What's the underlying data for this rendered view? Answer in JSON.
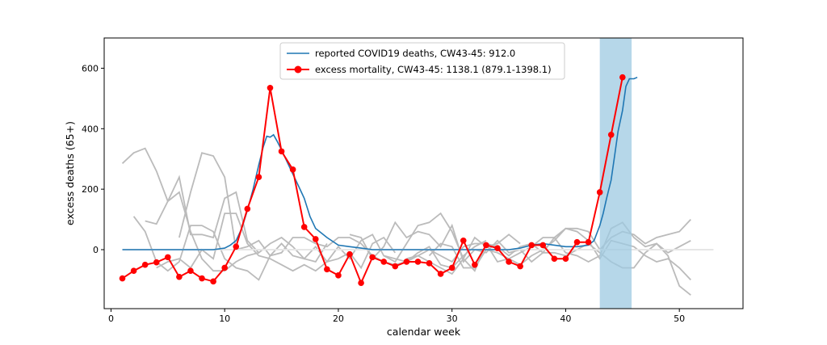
{
  "chart_data": {
    "type": "line",
    "xlabel": "calendar week",
    "ylabel": "excess deaths (65+)",
    "xlim": [
      -0.6,
      55.6
    ],
    "ylim": [
      -195,
      700
    ],
    "x_ticks": [
      0,
      10,
      20,
      30,
      40,
      50
    ],
    "y_ticks": [
      0,
      200,
      400,
      600
    ],
    "legend_position": "top-center",
    "colors": {
      "reported": "#1f77b4",
      "excess": "#ff0000",
      "background": "#bbbbbb",
      "highlight": "#9ecae1",
      "zero_line": "#e6e6e6"
    },
    "highlight_span": {
      "x_start": 43,
      "x_end": 45.8,
      "y_top": 700
    },
    "legend": [
      {
        "label": "reported COVID19 deaths, CW43-45: 912.0",
        "series": "reported"
      },
      {
        "label": "excess mortality, CW43-45: 1138.1 (879.1-1398.1)",
        "series": "excess"
      }
    ],
    "background_series": [
      {
        "x": [
          1,
          2,
          3,
          4,
          5,
          6,
          7,
          8,
          9,
          10,
          11,
          12,
          13
        ],
        "y": [
          285,
          320,
          335,
          260,
          160,
          190,
          60,
          -30,
          -70,
          -70,
          -40,
          -20,
          -10
        ]
      },
      {
        "x": [
          2,
          3,
          4,
          5,
          6,
          7,
          8,
          9,
          10,
          11,
          12,
          13,
          14,
          15,
          16,
          17,
          18,
          19
        ],
        "y": [
          110,
          60,
          -40,
          -70,
          -40,
          80,
          80,
          60,
          -30,
          -60,
          -70,
          -100,
          -20,
          20,
          -20,
          -30,
          -40,
          20
        ]
      },
      {
        "x": [
          3,
          4,
          5,
          6,
          7,
          8,
          9,
          10,
          11,
          12,
          13,
          14,
          15,
          16,
          17,
          18,
          19,
          20,
          21,
          22,
          23,
          24,
          25
        ],
        "y": [
          95,
          85,
          160,
          240,
          50,
          50,
          40,
          170,
          190,
          30,
          -10,
          20,
          40,
          10,
          -30,
          10,
          -40,
          -30,
          -10,
          -60,
          20,
          40,
          -10
        ]
      },
      {
        "x": [
          4,
          5,
          6,
          7,
          8,
          9,
          10,
          11,
          12,
          13,
          14,
          15,
          16,
          17,
          18,
          19,
          20,
          21,
          22,
          23,
          24,
          25,
          26,
          27,
          28,
          29,
          30,
          31,
          32,
          33
        ],
        "y": [
          -60,
          -40,
          -30,
          -60,
          0,
          -30,
          120,
          120,
          20,
          -20,
          -30,
          -50,
          -70,
          -50,
          -70,
          -40,
          10,
          -30,
          30,
          50,
          -20,
          -30,
          -40,
          -10,
          10,
          -50,
          -60,
          -20,
          10,
          30
        ]
      },
      {
        "x": [
          6,
          7,
          8,
          9,
          10,
          11,
          12,
          13,
          14,
          15,
          16,
          17,
          18,
          19,
          20,
          21,
          22,
          23,
          24,
          25,
          26,
          27,
          28,
          29,
          30,
          31,
          32,
          33,
          34,
          35,
          36
        ],
        "y": [
          40,
          190,
          320,
          310,
          240,
          0,
          10,
          30,
          -20,
          -10,
          40,
          40,
          20,
          10,
          40,
          40,
          20,
          -20,
          -40,
          -50,
          -40,
          -20,
          -40,
          -60,
          -80,
          -30,
          40,
          10,
          20,
          50,
          20
        ]
      },
      {
        "x": [
          21,
          22,
          23,
          24,
          25,
          26,
          27,
          28,
          29,
          30,
          31,
          32,
          33,
          34,
          35,
          36,
          37,
          38,
          39,
          40,
          41,
          42,
          43,
          44,
          45,
          46,
          47,
          48,
          49,
          50,
          51
        ],
        "y": [
          50,
          40,
          -30,
          10,
          90,
          40,
          60,
          50,
          10,
          80,
          -40,
          0,
          -10,
          30,
          -10,
          0,
          -40,
          -10,
          40,
          70,
          60,
          30,
          -30,
          30,
          20,
          10,
          -20,
          -40,
          -30,
          -60,
          -100
        ]
      },
      {
        "x": [
          24,
          25,
          26,
          27,
          28,
          29,
          30,
          31,
          32,
          33,
          34,
          35,
          36,
          37,
          38,
          39,
          40,
          41,
          42,
          43,
          44,
          45,
          46,
          47,
          48,
          49,
          50,
          51
        ],
        "y": [
          -20,
          -40,
          20,
          80,
          90,
          120,
          60,
          -30,
          -70,
          20,
          10,
          -20,
          10,
          20,
          -10,
          -10,
          -20,
          0,
          20,
          -10,
          -40,
          -60,
          -60,
          -10,
          20,
          -20,
          -120,
          -150
        ]
      },
      {
        "x": [
          26,
          27,
          28,
          29,
          30,
          31,
          32,
          33,
          34,
          35,
          36,
          37,
          38,
          39,
          40,
          41,
          42,
          43,
          44,
          45,
          46,
          47,
          48,
          49,
          50,
          51
        ],
        "y": [
          -30,
          -20,
          0,
          -20,
          -40,
          10,
          20,
          20,
          -40,
          -30,
          -10,
          10,
          40,
          40,
          -10,
          -20,
          -40,
          -20,
          70,
          90,
          40,
          10,
          20,
          -10,
          10,
          30
        ]
      },
      {
        "x": [
          28,
          29,
          30,
          31,
          32,
          33,
          34,
          35,
          36,
          37,
          38,
          39,
          40,
          41,
          42,
          43,
          44,
          45,
          46,
          47,
          48,
          49,
          50,
          51
        ],
        "y": [
          -20,
          20,
          10,
          -60,
          -60,
          0,
          -10,
          -30,
          -50,
          -20,
          0,
          30,
          70,
          70,
          60,
          0,
          40,
          60,
          50,
          20,
          40,
          50,
          60,
          100
        ]
      }
    ],
    "reported_series": {
      "x": [
        1,
        2,
        3,
        4,
        5,
        6,
        7,
        8,
        9,
        10,
        10.5,
        11,
        11.5,
        12,
        12.5,
        13,
        13.4,
        13.7,
        14,
        14.3,
        14.6,
        15,
        15.5,
        16,
        16.5,
        17,
        17.5,
        18,
        19,
        20,
        21,
        22,
        23,
        24,
        25,
        26,
        27,
        28,
        29,
        30,
        31,
        32,
        33,
        34,
        35,
        36,
        37,
        38,
        39,
        40,
        41,
        42,
        42.5,
        43,
        43.3,
        43.6,
        44,
        44.3,
        44.6,
        45,
        45.3,
        45.6,
        46,
        46.3
      ],
      "y": [
        0,
        0,
        0,
        0,
        0,
        0,
        0,
        0,
        0,
        5,
        15,
        30,
        70,
        130,
        200,
        280,
        340,
        375,
        372,
        380,
        360,
        330,
        290,
        250,
        210,
        170,
        110,
        70,
        40,
        15,
        10,
        5,
        0,
        0,
        0,
        0,
        0,
        0,
        0,
        0,
        0,
        0,
        0,
        0,
        0,
        5,
        15,
        20,
        15,
        10,
        10,
        15,
        30,
        80,
        120,
        170,
        230,
        310,
        390,
        460,
        540,
        565,
        565,
        570
      ]
    },
    "excess_series": {
      "x": [
        1,
        2,
        3,
        4,
        5,
        6,
        7,
        8,
        9,
        10,
        11,
        12,
        13,
        14,
        15,
        16,
        17,
        18,
        19,
        20,
        21,
        22,
        23,
        24,
        25,
        26,
        27,
        28,
        29,
        30,
        31,
        32,
        33,
        34,
        35,
        36,
        37,
        38,
        39,
        40,
        41,
        42,
        43,
        44,
        45
      ],
      "y": [
        -95,
        -70,
        -50,
        -42,
        -25,
        -90,
        -70,
        -95,
        -105,
        -60,
        10,
        135,
        240,
        535,
        325,
        265,
        75,
        35,
        -65,
        -85,
        -15,
        -110,
        -25,
        -40,
        -55,
        -40,
        -40,
        -45,
        -80,
        -60,
        30,
        -50,
        15,
        5,
        -40,
        -55,
        15,
        15,
        -30,
        -30,
        25,
        25,
        190,
        380,
        570
      ]
    }
  }
}
